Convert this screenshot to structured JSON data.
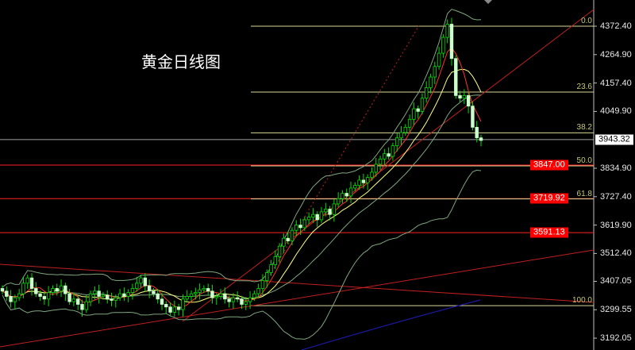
{
  "title": "黄金日线图",
  "colors": {
    "background": "#000000",
    "bull_candle": "#00e000",
    "bear_candle": "#ccffcc",
    "fib": "#d8d89a",
    "support_line": "#ff2020",
    "trendline": "#c02020",
    "bollinger": "#7fa67f",
    "ma_fast": "#ff3030",
    "ma_mid": "#ffff80",
    "blue_ma": "#1a1aa0",
    "current_price_tag": "#ffffff",
    "red_tag": "#ff0000"
  },
  "chart_data": {
    "type": "candlestick",
    "title": "黄金日线图",
    "ylim": [
      3180,
      4420
    ],
    "y_ticks": [
      "4372.40",
      "4264.90",
      "4157.40",
      "4049.90",
      "3834.90",
      "3727.40",
      "3619.90",
      "3512.40",
      "3407.05",
      "3299.55",
      "3192.05"
    ],
    "y_tick_values": [
      4372.4,
      4264.9,
      4157.4,
      4049.9,
      3834.9,
      3727.4,
      3619.9,
      3512.4,
      3407.05,
      3299.55,
      3192.05
    ],
    "close": [
      3370,
      3350,
      3330,
      3345,
      3360,
      3400,
      3420,
      3380,
      3360,
      3350,
      3340,
      3365,
      3380,
      3370,
      3390,
      3360,
      3330,
      3340,
      3320,
      3300,
      3330,
      3360,
      3370,
      3350,
      3355,
      3340,
      3335,
      3345,
      3360,
      3350,
      3365,
      3380,
      3400,
      3420,
      3390,
      3370,
      3360,
      3340,
      3320,
      3310,
      3290,
      3310,
      3300,
      3340,
      3350,
      3360,
      3365,
      3375,
      3380,
      3370,
      3345,
      3350,
      3360,
      3340,
      3330,
      3345,
      3340,
      3320,
      3330,
      3345,
      3360,
      3380,
      3410,
      3440,
      3470,
      3500,
      3540,
      3570,
      3560,
      3600,
      3620,
      3610,
      3640,
      3650,
      3660,
      3640,
      3670,
      3680,
      3660,
      3700,
      3720,
      3740,
      3730,
      3760,
      3770,
      3790,
      3780,
      3800,
      3820,
      3850,
      3870,
      3890,
      3880,
      3920,
      3950,
      3970,
      3990,
      4020,
      4060,
      4050,
      4100,
      4140,
      4180,
      4220,
      4270,
      4330,
      4380,
      4250,
      4110,
      4100,
      4110,
      4070,
      3990,
      3950,
      3940
    ],
    "fibonacci": [
      {
        "label": "0.0",
        "price": 4372.4
      },
      {
        "label": "23.6",
        "price": 4123
      },
      {
        "label": "38.2",
        "price": 3969
      },
      {
        "label": "50.0",
        "price": 3844
      },
      {
        "label": "61.8",
        "price": 3719
      },
      {
        "label": "100.0",
        "price": 3315
      }
    ],
    "current_price": {
      "label": "3943.32",
      "price": 3943.32
    },
    "support_levels": [
      {
        "label": "3847.00",
        "price": 3847.0
      },
      {
        "label": "3719.92",
        "price": 3719.92
      },
      {
        "label": "3591.13",
        "price": 3591.13
      }
    ]
  }
}
